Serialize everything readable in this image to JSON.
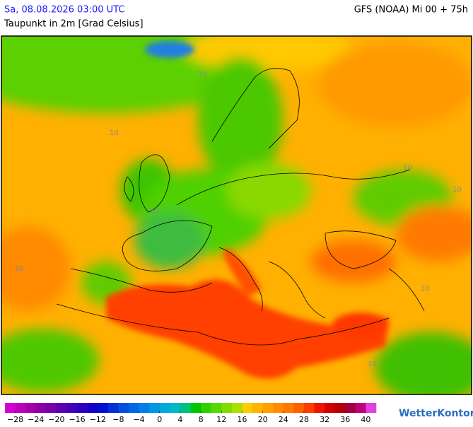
{
  "header": {
    "valid_time": "Sa, 08.08.2026 03:00 UTC",
    "parameter": "Taupunkt in 2m [Grad Celsius]",
    "model_run": "GFS (NOAA) Mi 00 + 75h"
  },
  "map": {
    "contour_labels": [
      "10",
      "10",
      "10",
      "10",
      "10",
      "10",
      "10",
      "10"
    ]
  },
  "colorbar": {
    "range": [
      -30,
      42
    ],
    "colors": [
      "#d200d2",
      "#bc00c0",
      "#a400a8",
      "#8c00a8",
      "#7400a8",
      "#5c00b0",
      "#4400b8",
      "#2c00c0",
      "#1400c8",
      "#0010d0",
      "#0030d8",
      "#0050e0",
      "#0068e4",
      "#0080e8",
      "#0096e4",
      "#00a8dc",
      "#00b8c8",
      "#00c080",
      "#00c800",
      "#30d000",
      "#58d800",
      "#80dc00",
      "#a8e000",
      "#ffcc00",
      "#ffb400",
      "#ffa000",
      "#ff8c00",
      "#ff7800",
      "#ff6000",
      "#ff3c00",
      "#f01400",
      "#d20000",
      "#b40000",
      "#a00040",
      "#c0007c",
      "#e040e0"
    ],
    "ticks": [
      {
        "value": -28,
        "label": "−28"
      },
      {
        "value": -24,
        "label": "−24"
      },
      {
        "value": -20,
        "label": "−20"
      },
      {
        "value": -16,
        "label": "−16"
      },
      {
        "value": -12,
        "label": "−12"
      },
      {
        "value": -8,
        "label": "−8"
      },
      {
        "value": -4,
        "label": "−4"
      },
      0,
      4,
      8,
      12,
      16,
      20,
      24,
      28,
      32,
      36,
      40
    ]
  },
  "footer": {
    "brand": "WetterKontor"
  }
}
